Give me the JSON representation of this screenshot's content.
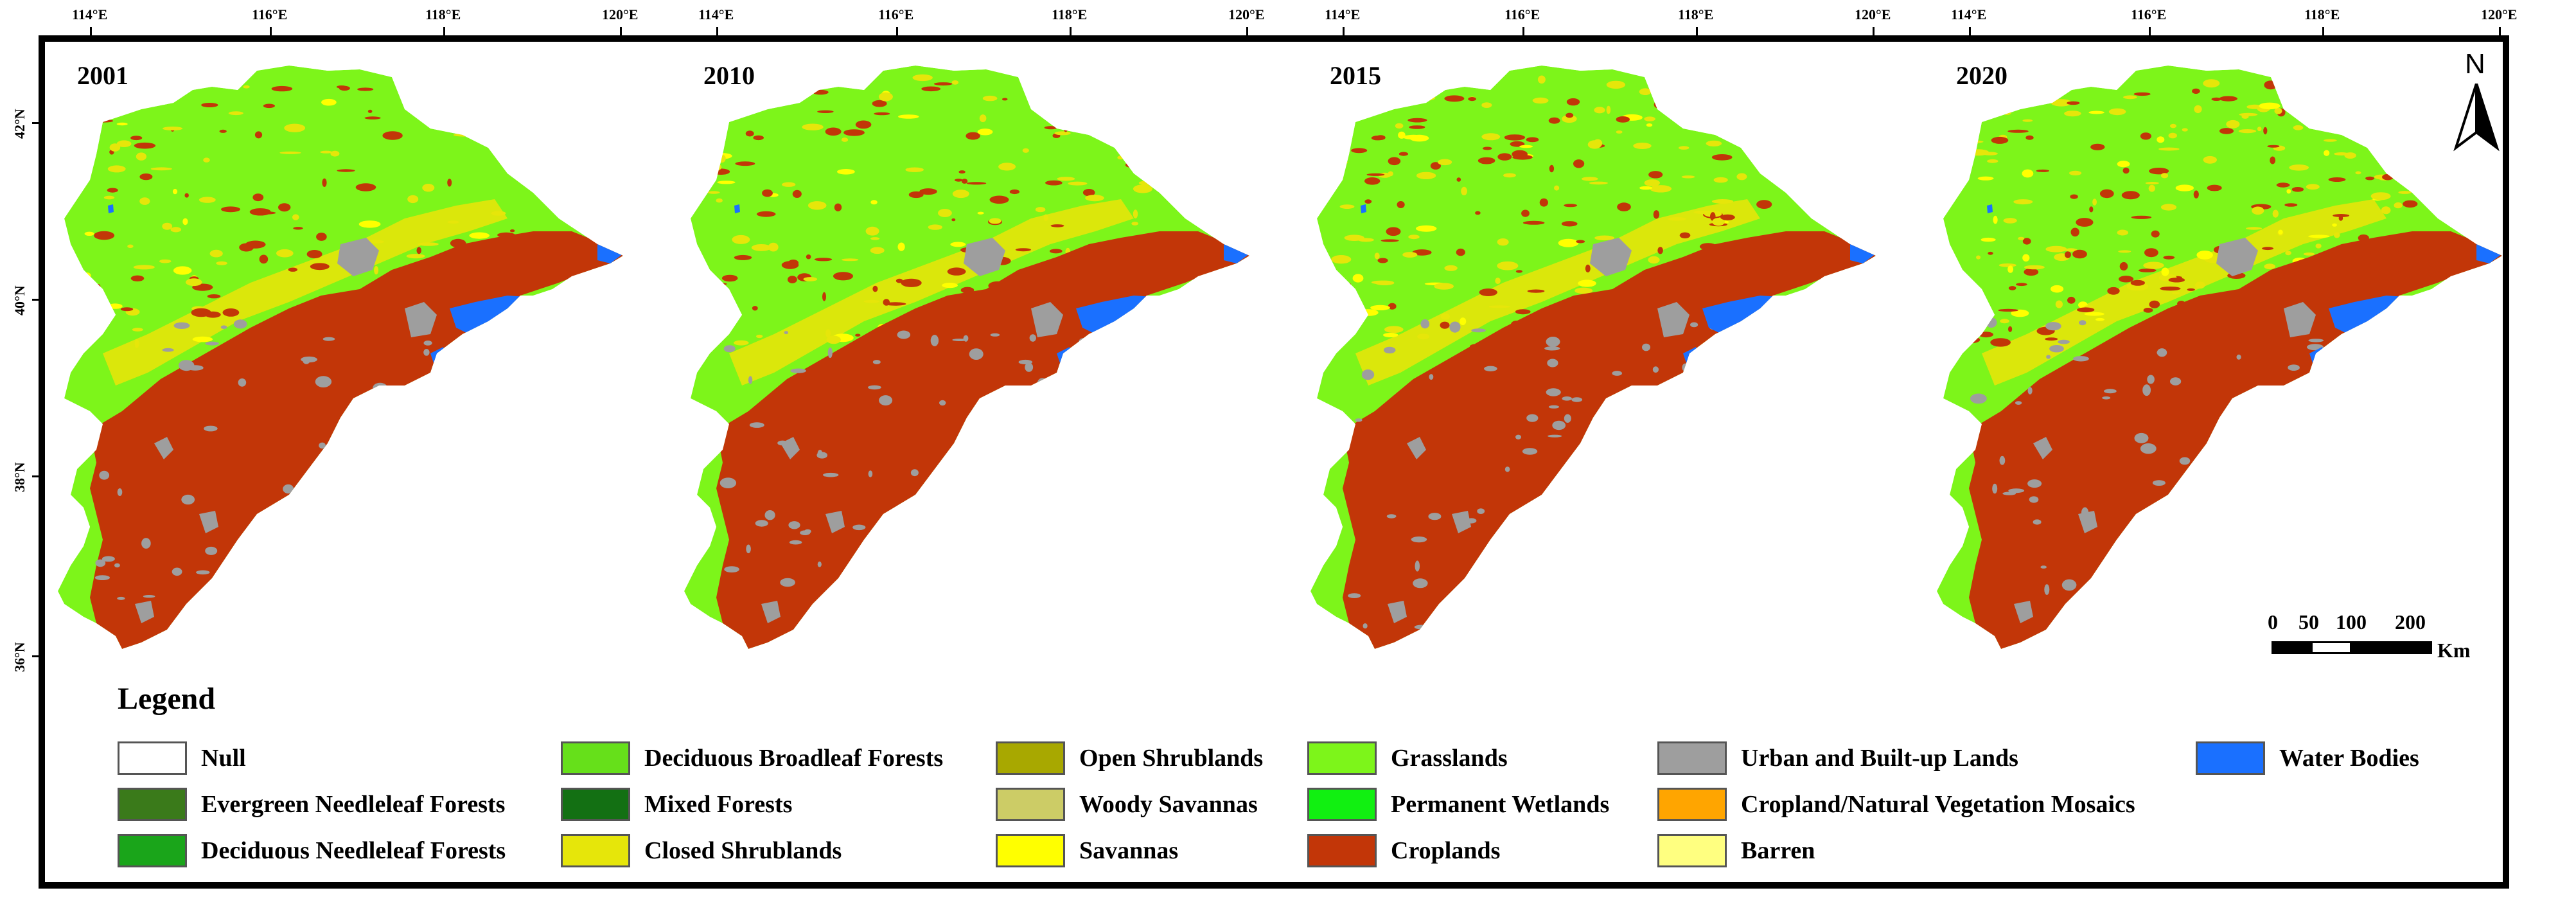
{
  "x_axis_labels": [
    "114°E",
    "116°E",
    "118°E",
    "120°E"
  ],
  "y_axis_labels": [
    "42°N",
    "40°N",
    "38°N",
    "36°N"
  ],
  "panels": [
    {
      "year": "2001"
    },
    {
      "year": "2010"
    },
    {
      "year": "2015"
    },
    {
      "year": "2020"
    }
  ],
  "north_arrow": {
    "label": "N",
    "icon": "north-arrow-icon"
  },
  "scale_bar": {
    "labels": [
      "0",
      "50",
      "100",
      "200"
    ],
    "unit": "Km"
  },
  "legend": {
    "title": "Legend",
    "items": [
      {
        "label": "Null",
        "color": "#ffffff"
      },
      {
        "label": "Evergreen Needleleaf Forests",
        "color": "#3a7a1a"
      },
      {
        "label": "Deciduous Needleleaf Forests",
        "color": "#1aa51a"
      },
      {
        "label": "Deciduous Broadleaf Forests",
        "color": "#66e01a"
      },
      {
        "label": "Mixed Forests",
        "color": "#137013"
      },
      {
        "label": "Closed Shrublands",
        "color": "#e6e60a"
      },
      {
        "label": "Open Shrublands",
        "color": "#a8a800"
      },
      {
        "label": "Woody Savannas",
        "color": "#cccc66"
      },
      {
        "label": "Savannas",
        "color": "#ffff00"
      },
      {
        "label": "Grasslands",
        "color": "#7df51a"
      },
      {
        "label": "Permanent Wetlands",
        "color": "#11f011"
      },
      {
        "label": "Croplands",
        "color": "#c23608"
      },
      {
        "label": "Urban and Built-up Lands",
        "color": "#9e9e9e"
      },
      {
        "label": "Cropland/Natural Vegetation Mosaics",
        "color": "#ffa500"
      },
      {
        "label": "Barren",
        "color": "#ffff80"
      },
      {
        "label": "Water Bodies",
        "color": "#1a70ff"
      }
    ]
  }
}
